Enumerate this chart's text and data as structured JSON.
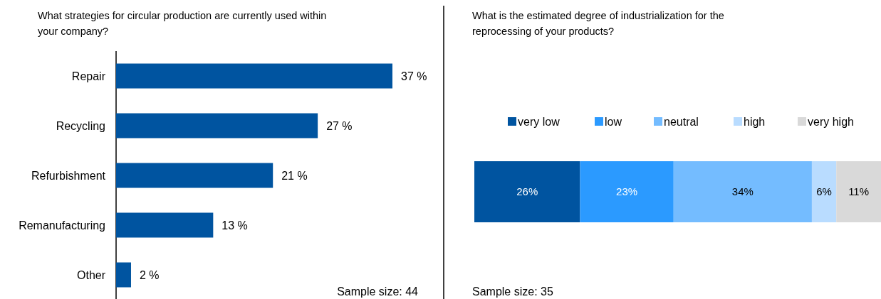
{
  "chart_data": [
    {
      "type": "bar",
      "orientation": "horizontal",
      "title": "What strategies for circular production are currently used within your company?",
      "categories": [
        "Repair",
        "Recycling",
        "Refurbishment",
        "Remanufacturing",
        "Other"
      ],
      "values": [
        37,
        27,
        21,
        13,
        2
      ],
      "value_labels": [
        "37 %",
        "27 %",
        "21 %",
        "13 %",
        "2 %"
      ],
      "color": "#0054a0",
      "annotations": [
        "Sample size: 44"
      ]
    },
    {
      "type": "bar",
      "orientation": "horizontal",
      "stacked": true,
      "title": "What is the estimated degree of industrialization for the reprocessing of your products?",
      "categories": [
        null
      ],
      "legend": "top",
      "series": [
        {
          "name": "very low",
          "color": "#0054a0",
          "values": [
            26
          ],
          "value_labels": [
            "26%"
          ]
        },
        {
          "name": "low",
          "color": "#2b9aff",
          "values": [
            23
          ],
          "value_labels": [
            "23%"
          ]
        },
        {
          "name": "neutral",
          "color": "#74bcff",
          "values": [
            34
          ],
          "value_labels": [
            "34%"
          ]
        },
        {
          "name": "high",
          "color": "#b9dcff",
          "values": [
            6
          ],
          "value_labels": [
            "6%"
          ]
        },
        {
          "name": "very high",
          "color": "#d9d9d9",
          "values": [
            11
          ],
          "value_labels": [
            "11%"
          ]
        }
      ],
      "annotations": [
        "Sample size: 35"
      ]
    }
  ]
}
